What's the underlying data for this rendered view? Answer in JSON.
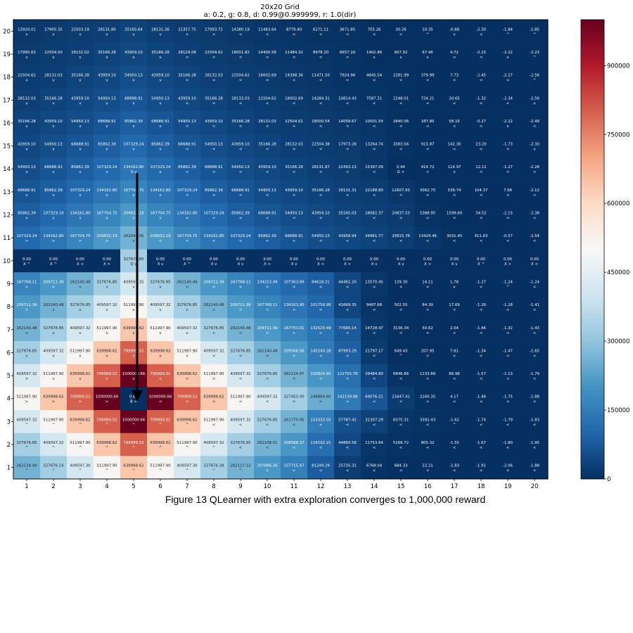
{
  "chart_data": {
    "type": "heatmap",
    "title": "20x20 Grid",
    "subtitle": "a: 0.2, g: 0.8, d: 0.99@0.999999, r: 1.0(dir)",
    "x_labels": [
      "1",
      "2",
      "3",
      "4",
      "5",
      "6",
      "7",
      "8",
      "9",
      "10",
      "11",
      "12",
      "13",
      "14",
      "15",
      "16",
      "17",
      "18",
      "19",
      "20"
    ],
    "y_labels": [
      "1",
      "2",
      "3",
      "4",
      "5",
      "6",
      "7",
      "8",
      "9",
      "10",
      "11",
      "12",
      "13",
      "14",
      "15",
      "16",
      "17",
      "18",
      "19",
      "20"
    ],
    "colorbar": {
      "min": 0,
      "max": 1000000,
      "ticks": [
        0,
        150000,
        300000,
        450000,
        600000,
        750000,
        900000
      ],
      "colormap": "RdBu_r"
    },
    "grid": false,
    "rows": [
      {
        "row": 20,
        "values": [
          "13920.01",
          "17905.35",
          "22503.19",
          "28131.80",
          "35165.64",
          "28131.36",
          "22357.75",
          "17993.72",
          "14380.19",
          "11483.64",
          "8779.40",
          "6271.11",
          "3671.85",
          "705.26",
          "30.26",
          "10.35",
          "-0.88",
          "-2.30",
          "-1.84",
          "-1.85"
        ],
        "actions": [
          "v",
          "v",
          "v",
          "v",
          "v",
          "v",
          "<",
          "<",
          "<",
          "<",
          "<",
          "<",
          "<",
          "<",
          "<",
          "^",
          "v",
          "<",
          "^",
          "^"
        ]
      },
      {
        "row": 19,
        "values": [
          "17995.63",
          "22504.50",
          "28132.02",
          "35166.28",
          "43959.10",
          "35166.28",
          "28129.08",
          "22504.62",
          "18001.82",
          "14400.58",
          "11484.32",
          "8978.20",
          "6657.16",
          "1402.86",
          "607.92",
          "67.46",
          "4.72",
          "-2.15",
          "-2.22",
          "-2.23"
        ],
        "actions": [
          "v",
          "v",
          "v",
          "v",
          "v",
          "v",
          "<",
          "<",
          "<",
          "<",
          "<",
          "<",
          "<",
          "v",
          "v",
          "v",
          "<",
          "<",
          "v",
          "^"
        ]
      },
      {
        "row": 18,
        "values": [
          "22504.62",
          "28132.03",
          "35166.28",
          "43959.10",
          "54950.13",
          "43959.10",
          "35166.28",
          "28132.03",
          "22504.62",
          "18002.69",
          "14398.36",
          "11471.50",
          "7924.96",
          "4845.54",
          "2281.99",
          "379.99",
          "7.73",
          "-2.45",
          "-2.27",
          "-2.56"
        ],
        "actions": [
          "v",
          "v",
          "v",
          "v",
          "v",
          "v",
          "<",
          "<",
          "<",
          "<",
          "<",
          "<",
          "<",
          "<",
          "<",
          "<",
          "<",
          "<",
          "<",
          "^"
        ]
      },
      {
        "row": 17,
        "values": [
          "28132.03",
          "35166.28",
          "43959.10",
          "54950.13",
          "68688.91",
          "54950.13",
          "43959.10",
          "35166.28",
          "28132.03",
          "22504.62",
          "18002.69",
          "14284.31",
          "10814.43",
          "7587.31",
          "2248.01",
          "724.21",
          "20.65",
          "-1.32",
          "-2.34",
          "-2.56"
        ],
        "actions": [
          "v",
          "v",
          "v",
          "v",
          "v",
          "v",
          "<",
          "<",
          "<",
          "<",
          "<",
          "<",
          "<",
          "<",
          "<",
          "<",
          "<",
          "<",
          "<",
          "v"
        ]
      },
      {
        "row": 16,
        "values": [
          "35166.28",
          "43959.10",
          "54950.13",
          "68688.91",
          "85862.39",
          "68688.91",
          "54950.13",
          "43959.10",
          "35166.28",
          "28132.03",
          "22504.61",
          "18000.54",
          "14058.67",
          "10001.54",
          "2840.06",
          "187.80",
          "58.16",
          "-0.27",
          "-2.22",
          "-2.49"
        ],
        "actions": [
          "v",
          "v",
          "v",
          "v",
          "v",
          "v",
          "<",
          "<",
          "<",
          "<",
          "<",
          "<",
          "<",
          "<",
          "<",
          "<",
          "<",
          "<",
          "v",
          "<"
        ]
      },
      {
        "row": 15,
        "values": [
          "43959.10",
          "54950.13",
          "68688.91",
          "85862.39",
          "107329.24",
          "85862.39",
          "68688.91",
          "54950.13",
          "43959.10",
          "35166.28",
          "28132.03",
          "22504.38",
          "17973.26",
          "13264.74",
          "3383.56",
          "915.87",
          "142.30",
          "23.20",
          "-1.73",
          "-2.30"
        ],
        "actions": [
          "v",
          "v",
          "v",
          "v",
          "v",
          "v",
          "<",
          "<",
          "<",
          "<",
          "<",
          "<",
          "<",
          "<",
          "<",
          "<",
          "<",
          "<",
          "<",
          "v"
        ]
      },
      {
        "row": 14,
        "values": [
          "54950.13",
          "68688.91",
          "85862.39",
          "107329.24",
          "134162.80",
          "107329.24",
          "85862.39",
          "68688.91",
          "54950.13",
          "43959.10",
          "35166.28",
          "28131.87",
          "22493.13",
          "15397.09",
          "0.44",
          "414.72",
          "114.97",
          "12.11",
          "-1.27",
          "-2.28"
        ],
        "actions": [
          "v",
          "v",
          "v",
          "v",
          "S v",
          "v",
          "<",
          "<",
          "<",
          "<",
          "<",
          "<",
          "<",
          "<",
          "G <",
          "<",
          "v",
          "<",
          "<",
          "<"
        ]
      },
      {
        "row": 13,
        "values": [
          "68688.91",
          "85862.39",
          "107329.24",
          "134162.80",
          "167704.75",
          "134162.80",
          "107329.24",
          "85862.39",
          "68688.91",
          "54950.13",
          "43959.10",
          "35166.28",
          "28131.31",
          "22188.80",
          "12607.93",
          "3062.75",
          "539.74",
          "104.37",
          "7.68",
          "-2.12"
        ],
        "actions": [
          "v",
          "v",
          "v",
          "v",
          "v",
          "v",
          "<",
          "<",
          "<",
          "<",
          "<",
          "<",
          "<",
          "<",
          "<",
          "<",
          "<",
          "<",
          "<",
          "<"
        ]
      },
      {
        "row": 12,
        "values": [
          "85862.39",
          "107329.24",
          "134162.80",
          "167704.75",
          "209632.19",
          "167704.75",
          "134162.80",
          "107329.24",
          "85862.39",
          "68688.91",
          "54950.13",
          "43959.10",
          "35165.03",
          "28082.37",
          "20837.53",
          "5388.95",
          "1599.60",
          "34.52",
          "-2.15",
          "-2.38"
        ],
        "actions": [
          "v",
          "v",
          "v",
          "v",
          "v",
          "v",
          "<",
          "<",
          "<",
          "<",
          "<",
          "<",
          "<",
          "<",
          "<",
          "<",
          "<",
          "<",
          "<",
          "<"
        ]
      },
      {
        "row": 11,
        "values": [
          "107329.24",
          "134162.80",
          "167704.75",
          "209632.19",
          "262041.05",
          "209632.19",
          "167704.75",
          "134162.80",
          "107329.24",
          "85862.39",
          "68688.91",
          "54950.13",
          "43958.94",
          "34961.77",
          "25815.78",
          "13429.46",
          "3031.45",
          "411.63",
          "-0.57",
          "-2.54"
        ],
        "actions": [
          ">",
          ">",
          ">",
          ">",
          "v",
          "<",
          "<",
          "<",
          "<",
          "<",
          "<",
          "<",
          "<",
          "<",
          "<",
          "<",
          "<",
          "<",
          "<",
          "<"
        ]
      },
      {
        "row": 10,
        "values": [
          "0.00",
          "0.00",
          "0.00",
          "0.00",
          "327676.85",
          "0.00",
          "0.00",
          "0.00",
          "0.00",
          "3.00",
          "0.00",
          "0.00",
          "0.00",
          "0.00",
          "0.00",
          "0.00",
          "0.00",
          "0.00",
          "0.00",
          "0.00"
        ],
        "actions": [
          "X ^",
          "X ^",
          "X <",
          "X >",
          "Q v",
          "X v",
          "X ^",
          "X v",
          "X v",
          "X >",
          "X v",
          "X <",
          "X >",
          "X v",
          "X v",
          "X <",
          "X v",
          "X ^",
          "X >",
          "X <"
        ]
      },
      {
        "row": 9,
        "values": [
          "167768.11",
          "209711.39",
          "262140.48",
          "327676.85",
          "409597.32",
          "327676.85",
          "262140.48",
          "209711.39",
          "167768.11",
          "134213.49",
          "107363.89",
          "84618.31",
          "44461.20",
          "13570.45",
          "139.30",
          "14.11",
          "1.78",
          "-1.27",
          "-1.24",
          "-1.24"
        ],
        "actions": [
          ">",
          ">",
          "v",
          "v",
          "v",
          "v",
          "<",
          "<",
          "<",
          "<",
          "<",
          "<",
          "<",
          "<",
          "<",
          "<",
          "v",
          "<",
          "^",
          "<"
        ]
      },
      {
        "row": 8,
        "values": [
          "209711.39",
          "262140.48",
          "327676.85",
          "409597.32",
          "511997.90",
          "409597.32",
          "327676.85",
          "262140.48",
          "209711.39",
          "167768.11",
          "134163.90",
          "101756.99",
          "41669.35",
          "9487.68",
          "502.55",
          "84.39",
          "17.69",
          "-1.26",
          "-1.28",
          "-1.41"
        ],
        "actions": [
          ">",
          "v",
          "v",
          "v",
          "v",
          "v",
          "v",
          "<",
          "<",
          "<",
          "<",
          "<",
          "<",
          "<",
          "<",
          "<",
          "<",
          "<",
          "<",
          "<"
        ]
      },
      {
        "row": 7,
        "values": [
          "262140.48",
          "327676.85",
          "409597.32",
          "511997.90",
          "639998.62",
          "511997.90",
          "409597.32",
          "327676.85",
          "262140.48",
          "209711.39",
          "167753.01",
          "132520.49",
          "77680.14",
          "14728.47",
          "3136.34",
          "50.62",
          "2.04",
          "-1.46",
          "-1.32",
          "-1.43"
        ],
        "actions": [
          ">",
          "v",
          "v",
          "v",
          "v",
          "v",
          "v",
          "<",
          "<",
          "<",
          "<",
          "<",
          "<",
          "<",
          "<",
          "<",
          "<",
          "<",
          "<",
          "<"
        ]
      },
      {
        "row": 6,
        "values": [
          "327676.85",
          "409597.32",
          "511997.90",
          "639998.62",
          "799999.52",
          "639998.62",
          "511997.90",
          "409597.32",
          "327676.85",
          "262140.48",
          "209568.56",
          "145240.28",
          "87993.29",
          "21797.17",
          "649.43",
          "207.95",
          "7.61",
          "-1.34",
          "-1.47",
          "-1.65"
        ],
        "actions": [
          "v",
          "v",
          "v",
          "v",
          "v",
          "v",
          "v",
          "<",
          "<",
          "<",
          "<",
          "<",
          "<",
          "<",
          "^",
          "<",
          "<",
          "<",
          "<",
          "<"
        ]
      },
      {
        "row": 5,
        "values": [
          "409597.32",
          "511997.90",
          "639998.62",
          "799999.52",
          "1000000.66",
          "799999.52",
          "639998.62",
          "511997.90",
          "409597.32",
          "327676.85",
          "262124.87",
          "205824.92",
          "122755.78",
          "39484.80",
          "6846.86",
          "1133.89",
          "86.98",
          "-1.57",
          "-1.13",
          "-1.79"
        ],
        "actions": [
          ">",
          "v",
          "v",
          "v",
          "v",
          "<",
          "<",
          "<",
          "<",
          "<",
          "<",
          "<",
          "<",
          "<",
          "<",
          "<",
          "<",
          "<",
          "<",
          "<"
        ]
      },
      {
        "row": 4,
        "values": [
          "511997.90",
          "639998.62",
          "799999.52",
          "1000000.66",
          "0.82",
          "1000000.66",
          "799999.52",
          "639998.62",
          "511997.90",
          "409597.32",
          "327455.00",
          "248884.60",
          "142139.88",
          "69076.21",
          "21647.41",
          "2160.35",
          "4.17",
          "-1.46",
          "-1.75",
          "-1.88"
        ],
        "actions": [
          ">",
          ">",
          ">",
          ">",
          "B >",
          "<",
          "<",
          "<",
          "<",
          "<",
          "<",
          "<",
          "<",
          "<",
          "<",
          "<",
          "<",
          "<",
          "<",
          "<"
        ]
      },
      {
        "row": 3,
        "values": [
          "409597.32",
          "511997.90",
          "639998.62",
          "799999.52",
          "1000000.66",
          "799999.52",
          "639998.62",
          "511997.90",
          "409597.32",
          "327676.85",
          "261770.95",
          "153333.55",
          "57787.42",
          "31307.29",
          "8375.31",
          "3392.43",
          "-1.62",
          "-1.74",
          "-1.79",
          "-1.83"
        ],
        "actions": [
          "^",
          "^",
          "^",
          "^",
          "^",
          "^",
          "^",
          "<",
          "<",
          "<",
          "<",
          "<",
          "<",
          "<",
          "<",
          "<",
          "^",
          "<",
          "<",
          "<"
        ]
      },
      {
        "row": 2,
        "values": [
          "327676.85",
          "409597.32",
          "511997.90",
          "639998.62",
          "799999.52",
          "639998.62",
          "511997.90",
          "409597.32",
          "327676.85",
          "262108.51",
          "208588.37",
          "118192.21",
          "44860.58",
          "11753.64",
          "5166.72",
          "805.32",
          "-1.55",
          "-1.67",
          "-1.80",
          "-1.95"
        ],
        "actions": [
          "^",
          "^",
          "^",
          "^",
          "^",
          "^",
          "^",
          "^",
          "<",
          "<",
          "<",
          "<",
          "<",
          "<",
          "<",
          "<",
          "<",
          "<",
          "<",
          "<"
        ]
      },
      {
        "row": 1,
        "values": [
          "262134.49",
          "327676.14",
          "409597.30",
          "511997.90",
          "639998.62",
          "511997.90",
          "409597.30",
          "327676.39",
          "262117.12",
          "207686.26",
          "157715.67",
          "81249.29",
          "25735.31",
          "6768.04",
          "684.33",
          "22.21",
          "-1.83",
          "-1.91",
          "-2.06",
          "-1.88"
        ],
        "actions": [
          "^",
          "^",
          "^",
          "^",
          "^",
          "^",
          "^",
          "^",
          "^",
          "<",
          "<",
          "<",
          "<",
          "<",
          "<",
          "<",
          "<",
          "<",
          "<",
          "<"
        ]
      }
    ],
    "annotations": [
      {
        "type": "arrow",
        "from": {
          "col": 5,
          "row": 14
        },
        "to": {
          "col": 5,
          "row": 4
        }
      }
    ]
  },
  "caption": "Figure 13 QLearner with extra exploration converges to 1,000,000 reward"
}
